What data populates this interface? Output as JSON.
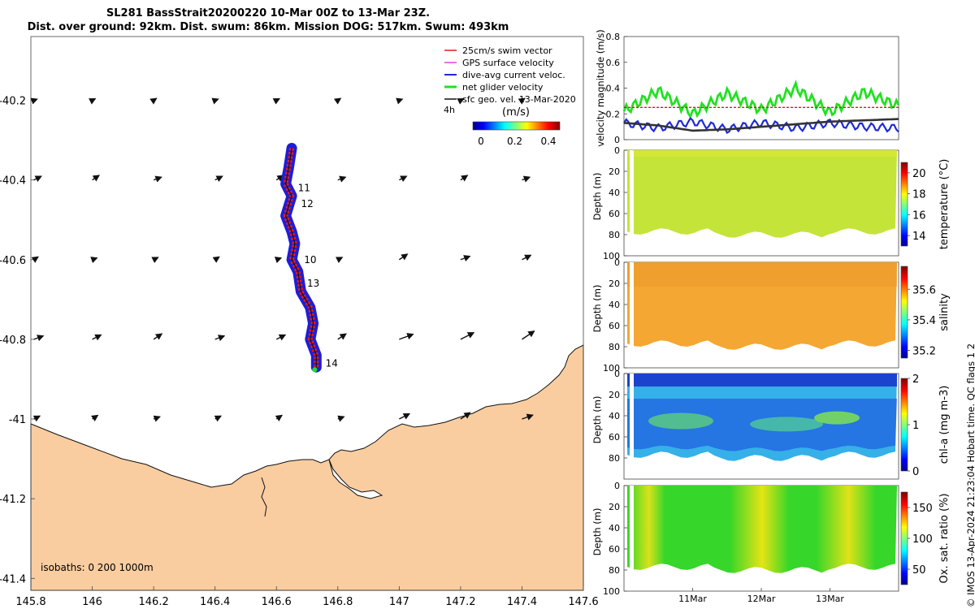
{
  "title_line1": "SL281 BassStrait20200220 10-Mar 00Z to 13-Mar 23Z.",
  "title_line2": "Dist. over ground: 92km. Dist. swum: 86km. Mission DOG: 517km. Swum: 493km",
  "credit": "© IMOS 13-Apr-2024 21:23:04 Hobart time. QC flags 1  2",
  "colors": {
    "land": "#f9cda0",
    "swim": "#e31a1c",
    "gps": "#e040e0",
    "current": "#1f2ad6",
    "net": "#22e022",
    "geo": "#111111",
    "track": "#1d1dd8"
  },
  "chart_data": [
    {
      "type": "scatter",
      "name": "map",
      "xlabel": "",
      "ylabel": "",
      "xlim": [
        145.8,
        147.6
      ],
      "ylim": [
        -41.43,
        -40.04
      ],
      "xticks": [
        "145.8",
        "146",
        "146.2",
        "146.4",
        "146.6",
        "146.8",
        "147",
        "147.2",
        "147.4",
        "147.6"
      ],
      "yticks": [
        "-40.2",
        "-40.4",
        "-40.6",
        "-40.8",
        "-41",
        "-41.2",
        "-41.4"
      ],
      "legend": [
        "25cm/s swim vector",
        "GPS surface velocity",
        "dive-avg current veloc.",
        "net glider velocity",
        "sfc geo. vel. 13-Mar-2020"
      ],
      "legend_placement": "top-right",
      "time_step_label": "4h",
      "colorbar": {
        "label": "(m/s)",
        "ticks": [
          "0",
          "0.2",
          "0.4"
        ]
      },
      "isobaths_label": "isobaths: 0   200  1000m",
      "day_labels": [
        {
          "text": "11",
          "lon": 146.67,
          "lat": -40.42
        },
        {
          "text": "12",
          "lon": 146.68,
          "lat": -40.46
        },
        {
          "text": "10",
          "lon": 146.69,
          "lat": -40.6
        },
        {
          "text": "13",
          "lon": 146.7,
          "lat": -40.66
        },
        {
          "text": "14",
          "lon": 146.76,
          "lat": -40.86
        }
      ],
      "track": [
        [
          146.65,
          -40.32
        ],
        [
          146.64,
          -40.37
        ],
        [
          146.63,
          -40.41
        ],
        [
          146.65,
          -40.44
        ],
        [
          146.63,
          -40.49
        ],
        [
          146.65,
          -40.53
        ],
        [
          146.66,
          -40.56
        ],
        [
          146.65,
          -40.6
        ],
        [
          146.67,
          -40.63
        ],
        [
          146.68,
          -40.68
        ],
        [
          146.71,
          -40.72
        ],
        [
          146.72,
          -40.76
        ],
        [
          146.71,
          -40.8
        ],
        [
          146.73,
          -40.84
        ],
        [
          146.73,
          -40.87
        ]
      ],
      "geo_vectors": {
        "lons": [
          145.81,
          146,
          146.2,
          146.4,
          146.6,
          146.8,
          147,
          147.2,
          147.4
        ],
        "lats": [
          -40.2,
          -40.4,
          -40.6,
          -40.8,
          -41
        ]
      }
    },
    {
      "type": "line",
      "name": "velocity",
      "ylabel": "velocity magnitude (m/s)",
      "ylim": [
        0,
        0.8
      ],
      "yticks": [
        "0",
        "0.2",
        "0.4",
        "0.6",
        "0.8"
      ],
      "x": [
        10,
        10.5,
        11,
        11.5,
        12,
        12.5,
        13,
        13.5,
        14
      ],
      "series": [
        {
          "name": "net glider velocity",
          "values": [
            0.22,
            0.38,
            0.2,
            0.36,
            0.23,
            0.4,
            0.21,
            0.37,
            0.26
          ]
        },
        {
          "name": "25cm/s swim vector",
          "values": [
            0.25,
            0.25,
            0.25,
            0.25,
            0.25,
            0.25,
            0.25,
            0.25,
            0.25
          ]
        },
        {
          "name": "dive-avg current veloc.",
          "values": [
            0.13,
            0.09,
            0.14,
            0.08,
            0.13,
            0.09,
            0.13,
            0.1,
            0.09
          ]
        },
        {
          "name": "sfc geo. vel. 13-Mar-2020",
          "values": [
            0.13,
            0.11,
            0.07,
            0.08,
            0.1,
            0.12,
            0.14,
            0.15,
            0.16
          ]
        }
      ]
    },
    {
      "type": "heatmap",
      "name": "temperature",
      "ylabel": "Depth (m)",
      "colorbar_label": "temperature (°C)",
      "ylim": [
        100,
        0
      ],
      "yticks": [
        "0",
        "20",
        "40",
        "60",
        "80",
        "100"
      ],
      "cbar_ticks": [
        "20",
        "18",
        "16",
        "14"
      ],
      "vmin": 13,
      "vmax": 21,
      "mean_value": 18.3
    },
    {
      "type": "heatmap",
      "name": "salinity",
      "ylabel": "Depth (m)",
      "colorbar_label": "salinity",
      "ylim": [
        100,
        0
      ],
      "yticks": [
        "0",
        "20",
        "40",
        "60",
        "80",
        "100"
      ],
      "cbar_ticks": [
        "35.6",
        "35.4",
        "35.2"
      ],
      "vmin": 35.15,
      "vmax": 35.75,
      "mean_value": 35.58
    },
    {
      "type": "heatmap",
      "name": "chl-a",
      "ylabel": "Depth (m)",
      "colorbar_label": "chl-a (mg m-3)",
      "ylim": [
        100,
        0
      ],
      "yticks": [
        "0",
        "20",
        "40",
        "60",
        "80"
      ],
      "cbar_ticks": [
        "2",
        "1",
        "0"
      ],
      "vmin": 0,
      "vmax": 2,
      "mean_value": 0.7
    },
    {
      "type": "heatmap",
      "name": "oxygen",
      "ylabel": "Depth (m)",
      "colorbar_label": "Ox. sat. ratio (%)",
      "ylim": [
        100,
        0
      ],
      "yticks": [
        "0",
        "20",
        "40",
        "60",
        "80",
        "100"
      ],
      "cbar_ticks": [
        "150",
        "100",
        "50"
      ],
      "vmin": 25,
      "vmax": 175,
      "mean_value": 100,
      "xticks": [
        "11Mar",
        "12Mar",
        "13Mar"
      ]
    }
  ]
}
